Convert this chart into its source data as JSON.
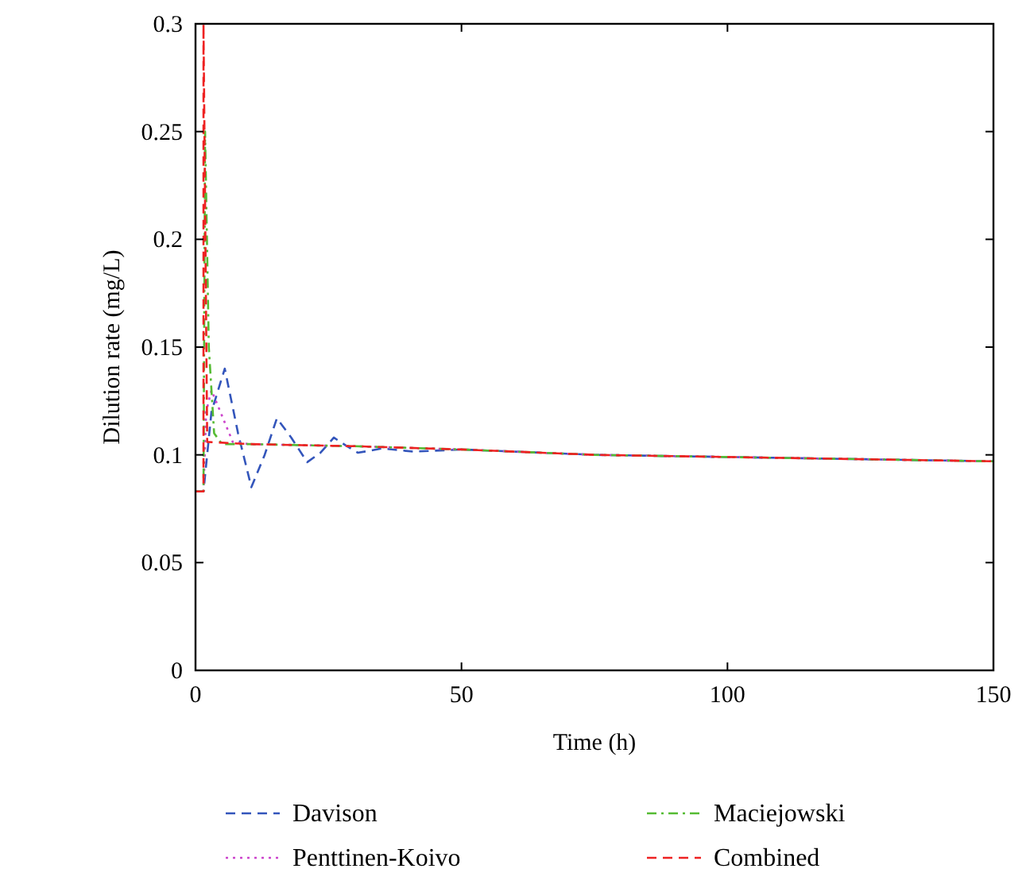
{
  "chart_data": {
    "type": "line",
    "xlabel": "Time (h)",
    "ylabel": "Dilution rate (mg/L)",
    "xlim": [
      0,
      150
    ],
    "ylim": [
      0,
      0.3
    ],
    "xticks": [
      0,
      50,
      100,
      150
    ],
    "yticks": [
      0,
      0.05,
      0.1,
      0.15,
      0.2,
      0.25,
      0.3
    ],
    "grid": false,
    "legend": "bottom",
    "series": [
      {
        "name": "Davison",
        "color": "#3355bb",
        "line_style": "dashed",
        "x": [
          0,
          1.5,
          3,
          5.5,
          8,
          10.5,
          13,
          15.3,
          18,
          21,
          23.5,
          26,
          28.5,
          30.5,
          33,
          35,
          41,
          50,
          75,
          100,
          125,
          150
        ],
        "values": [
          0.083,
          0.083,
          0.12,
          0.14,
          0.11,
          0.085,
          0.1,
          0.117,
          0.108,
          0.0966,
          0.101,
          0.108,
          0.104,
          0.101,
          0.102,
          0.103,
          0.1015,
          0.1025,
          0.1,
          0.099,
          0.098,
          0.097
        ]
      },
      {
        "name": "Penttinen-Koivo",
        "color": "#cc44cc",
        "line_style": "dotted",
        "x": [
          0,
          1.5,
          2,
          3,
          5,
          7,
          10,
          20,
          30,
          50,
          75,
          100,
          125,
          150
        ],
        "values": [
          0.083,
          0.083,
          0.12,
          0.13,
          0.118,
          0.106,
          0.105,
          0.1045,
          0.104,
          0.1025,
          0.1,
          0.099,
          0.098,
          0.097
        ]
      },
      {
        "name": "Maciejowski",
        "color": "#55bb33",
        "line_style": "dashdot",
        "x": [
          0,
          1.5,
          1.8,
          2.5,
          3.5,
          5,
          10,
          20,
          30,
          50,
          75,
          100,
          125,
          150
        ],
        "values": [
          0.083,
          0.083,
          0.25,
          0.15,
          0.11,
          0.105,
          0.105,
          0.1045,
          0.104,
          0.1025,
          0.1,
          0.099,
          0.098,
          0.097
        ]
      },
      {
        "name": "Combined",
        "color": "#ee2222",
        "line_style": "dashed",
        "x": [
          0,
          1.5,
          1.5,
          2.2,
          10,
          20,
          30,
          50,
          75,
          100,
          125,
          150
        ],
        "values": [
          0.083,
          0.083,
          0.3,
          0.106,
          0.105,
          0.1045,
          0.104,
          0.1025,
          0.1,
          0.099,
          0.098,
          0.097
        ]
      }
    ]
  }
}
